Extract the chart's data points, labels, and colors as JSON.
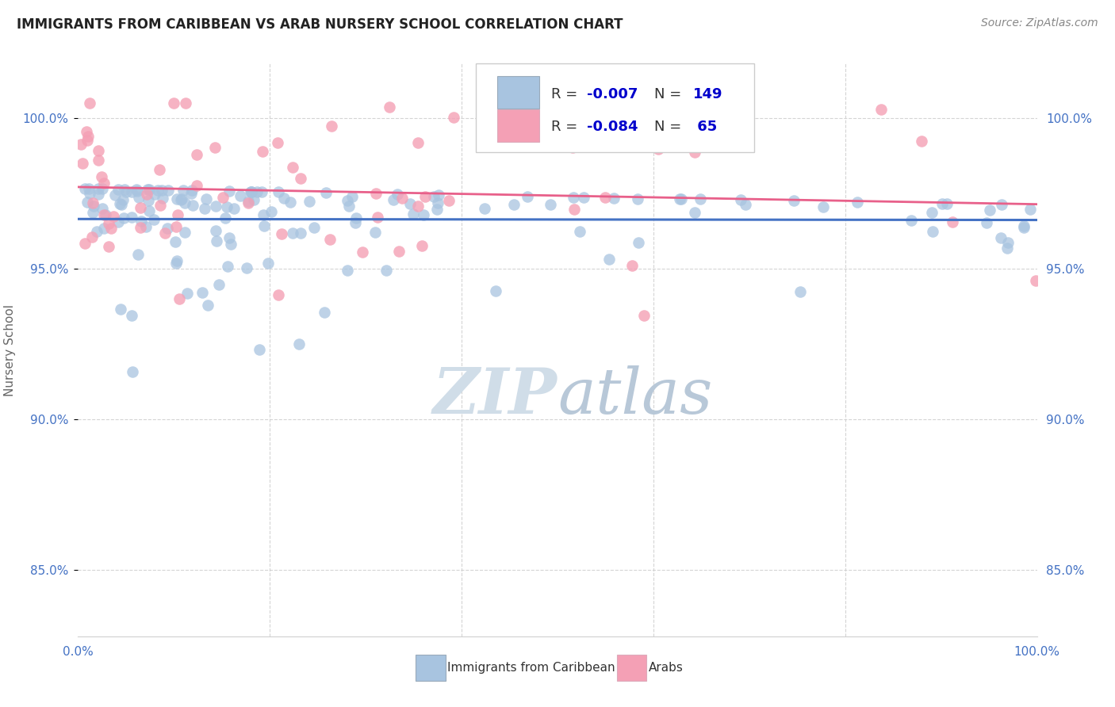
{
  "title": "IMMIGRANTS FROM CARIBBEAN VS ARAB NURSERY SCHOOL CORRELATION CHART",
  "source_text": "Source: ZipAtlas.com",
  "ylabel": "Nursery School",
  "y_tick_positions": [
    0.85,
    0.9,
    0.95,
    1.0
  ],
  "x_lim": [
    0.0,
    1.0
  ],
  "y_lim": [
    0.828,
    1.018
  ],
  "legend_r_blue": "-0.007",
  "legend_n_blue": "149",
  "legend_r_pink": "-0.084",
  "legend_n_pink": " 65",
  "legend_label_blue": "Immigrants from Caribbean",
  "legend_label_pink": "Arabs",
  "scatter_color_blue": "#a8c4e0",
  "scatter_color_pink": "#f4a0b5",
  "line_color_blue": "#4472c4",
  "line_color_pink": "#e8608a",
  "watermark_color": "#d0dde8",
  "title_color": "#222222",
  "axis_label_color": "#666666",
  "tick_label_color": "#4472c4",
  "grid_color": "#d0d0d0",
  "legend_text_color": "#222222",
  "legend_value_color": "#0000cc",
  "source_color": "#888888"
}
